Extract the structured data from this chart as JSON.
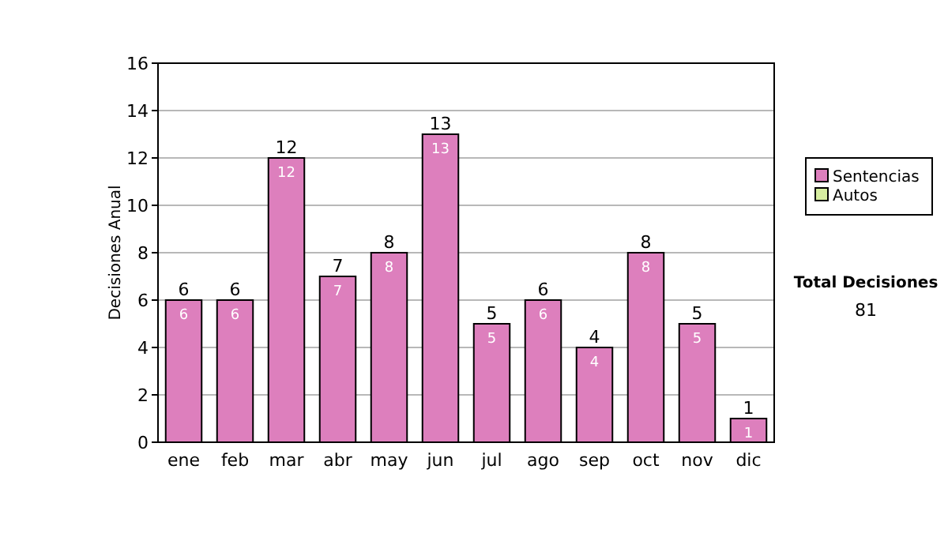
{
  "chart_data": {
    "type": "bar",
    "ylabel": "Decisiones Anual",
    "categories": [
      "ene",
      "feb",
      "mar",
      "abr",
      "may",
      "jun",
      "jul",
      "ago",
      "sep",
      "oct",
      "nov",
      "dic"
    ],
    "series": [
      {
        "name": "Sentencias",
        "color": "#dd7fbd",
        "values": [
          6,
          6,
          12,
          7,
          8,
          13,
          5,
          6,
          4,
          8,
          5,
          1
        ],
        "value_labels": [
          "6",
          "6",
          "12",
          "7",
          "8",
          "13",
          "5",
          "6",
          "4",
          "8",
          "5",
          "1"
        ]
      },
      {
        "name": "Autos",
        "color": "#d6eda0",
        "values": [
          0,
          0,
          0,
          0,
          0,
          0,
          0,
          0,
          0,
          0,
          0,
          0
        ]
      }
    ],
    "stacked": true,
    "totals": [
      "6",
      "6",
      "12",
      "7",
      "8",
      "13",
      "5",
      "6",
      "4",
      "8",
      "5",
      "1"
    ],
    "ylim": [
      0,
      16
    ],
    "yticks": [
      0,
      2,
      4,
      6,
      8,
      10,
      12,
      14,
      16
    ],
    "grid": "y",
    "legend": "right",
    "annotations": [
      "Total Decisiones",
      "81"
    ]
  }
}
